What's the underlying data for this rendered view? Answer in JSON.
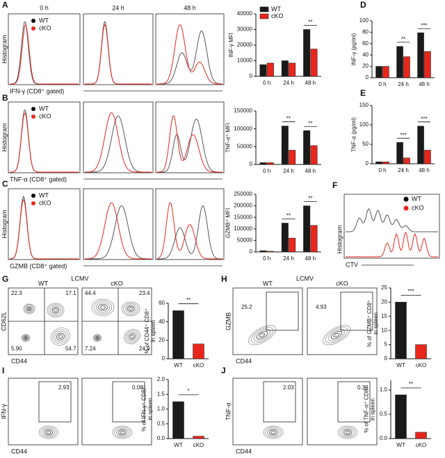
{
  "chart_data": [
    {
      "type": "bar",
      "ylabel": "INF-γ MFI",
      "categories": [
        "0 h",
        "24 h",
        "48 h"
      ],
      "series": [
        {
          "name": "WT",
          "color": "#1a1a1a",
          "values": [
            7500,
            10000,
            30000
          ]
        },
        {
          "name": "cKO",
          "color": "#e8261c",
          "values": [
            8500,
            8500,
            17500
          ]
        }
      ],
      "ylim": [
        0,
        40000
      ],
      "yticks": [
        0,
        10000,
        20000,
        30000,
        40000
      ],
      "significance": [
        null,
        null,
        "**"
      ]
    },
    {
      "type": "bar",
      "ylabel": "INF-γ (pg/ml)",
      "categories": [
        "0 h",
        "24 h",
        "48 h"
      ],
      "series": [
        {
          "color": "#1a1a1a",
          "values": [
            20,
            55,
            79
          ]
        },
        {
          "color": "#e8261c",
          "values": [
            20,
            37,
            46
          ]
        }
      ],
      "ylim": [
        0,
        100
      ],
      "yticks": [
        0,
        20,
        40,
        60,
        80,
        100
      ],
      "significance": [
        null,
        "**",
        "***"
      ]
    },
    {
      "type": "bar",
      "ylabel": "TNF-α⁺ MFI",
      "categories": [
        "0 h",
        "24 h",
        "48 h"
      ],
      "series": [
        {
          "color": "#1a1a1a",
          "values": [
            5000,
            108000,
            95000
          ]
        },
        {
          "color": "#e8261c",
          "values": [
            5000,
            40000,
            53000
          ]
        }
      ],
      "ylim": [
        0,
        150000
      ],
      "yticks": [
        0,
        50000,
        100000,
        150000
      ],
      "significance": [
        null,
        "**",
        "**"
      ]
    },
    {
      "type": "bar",
      "ylabel": "TNF-α (pg/ml)",
      "categories": [
        "0 h",
        "24 h",
        "48 h"
      ],
      "series": [
        {
          "color": "#1a1a1a",
          "values": [
            5,
            55,
            97
          ]
        },
        {
          "color": "#e8261c",
          "values": [
            5,
            15,
            35
          ]
        }
      ],
      "ylim": [
        0,
        150
      ],
      "yticks": [
        0,
        50,
        100,
        150
      ],
      "significance": [
        null,
        "***",
        "***"
      ]
    },
    {
      "type": "bar",
      "ylabel": "GZMB⁺ MFI",
      "categories": [
        "0 h",
        "24 h",
        "48 h"
      ],
      "series": [
        {
          "color": "#1a1a1a",
          "values": [
            5000,
            125000,
            200000
          ]
        },
        {
          "color": "#e8261c",
          "values": [
            3000,
            60000,
            115000
          ]
        }
      ],
      "ylim": [
        0,
        250000
      ],
      "yticks": [
        0,
        50000,
        100000,
        150000,
        200000,
        250000
      ],
      "significance": [
        null,
        "**",
        "**"
      ]
    },
    {
      "type": "bar",
      "ylabel": [
        "% of CD44⁺ CD8⁺",
        "in spleen"
      ],
      "categories": [
        "WT",
        "cKO"
      ],
      "values": [
        52,
        16
      ],
      "colors": [
        "#1a1a1a",
        "#e8261c"
      ],
      "ylim": [
        0,
        60
      ],
      "yticks": [
        0,
        20,
        40,
        60
      ],
      "significance": "**"
    },
    {
      "type": "bar",
      "ylabel": [
        "% of GZMB⁺ CD8⁺",
        "in spleen"
      ],
      "categories": [
        "WT",
        "cKO"
      ],
      "values": [
        20,
        5
      ],
      "colors": [
        "#1a1a1a",
        "#e8261c"
      ],
      "ylim": [
        0,
        25
      ],
      "yticks": [
        0,
        5,
        10,
        15,
        20,
        25
      ],
      "significance": "***"
    },
    {
      "type": "bar",
      "ylabel": [
        "% of IFN-γ⁺ CD8⁺",
        "in spleen"
      ],
      "categories": [
        "WT",
        "cKO"
      ],
      "values": [
        1.25,
        0.08
      ],
      "colors": [
        "#1a1a1a",
        "#e8261c"
      ],
      "ylim": [
        0,
        2
      ],
      "yticks": [
        {
          "value": 0,
          "label": "0.0"
        },
        {
          "value": 0.5,
          "label": "0.5"
        },
        {
          "value": 1,
          "label": "1.0"
        },
        {
          "value": 1.5,
          "label": "1.5"
        },
        {
          "value": 2,
          "label": "2.0"
        }
      ],
      "significance": "*"
    },
    {
      "type": "bar",
      "ylabel": [
        "% of TNF-α⁺ CD8⁺",
        "in spleen"
      ],
      "categories": [
        "WT",
        "cKO"
      ],
      "values": [
        0.9,
        0.13
      ],
      "colors": [
        "#1a1a1a",
        "#e8261c"
      ],
      "ylim": [
        0,
        1.2
      ],
      "yticks": [
        {
          "value": 0,
          "label": "0.0"
        },
        {
          "value": 0.5,
          "label": "0.5"
        },
        {
          "value": 1,
          "label": "1.0"
        }
      ],
      "significance": "**"
    }
  ],
  "letters": [
    "A",
    "B",
    "C",
    "D",
    "E",
    "F",
    "G",
    "H",
    "I",
    "J"
  ],
  "histograms": {
    "times": [
      "0 h",
      "24 h",
      "48 h"
    ],
    "ylabel": "Histogram",
    "colors": [
      "#555555",
      "#e8261c"
    ],
    "rows": [
      {
        "legend": [
          "WT",
          "cKO"
        ],
        "xlabel": "IFN-γ (CD8⁺ gated)"
      },
      {
        "legend": [
          "WT",
          "cKO"
        ],
        "xlabel": "TNF-α (CD8⁺ gated)"
      },
      {
        "legend": [
          "WT",
          "cKO"
        ],
        "xlabel": "GZMB (CD8⁺ gated)"
      }
    ]
  },
  "ctv": {
    "legend": [
      "WT",
      "cKO"
    ],
    "ylabel": "Histogram",
    "xlabel": "CTV"
  },
  "flow": [
    {
      "title": "LCMV",
      "groups": [
        "WT",
        "cKO"
      ],
      "ylabel": "CD62L",
      "xlabel": "CD44",
      "gates": [
        [
          "22.3",
          "17.1",
          "5.90",
          "54.7"
        ],
        [
          "44.4",
          "23.4",
          "7.24",
          "24.9"
        ]
      ]
    },
    {
      "title": "LCMV",
      "groups": [
        "WT",
        "cKO"
      ],
      "ylabel": "GZMB",
      "xlabel": "CD44",
      "gates": [
        [
          "25.2"
        ],
        [
          "4.93"
        ]
      ]
    },
    {
      "ylabel": "IFN-γ",
      "xlabel": "CD44",
      "gates": [
        [
          "2.93"
        ],
        [
          "0.081"
        ]
      ]
    },
    {
      "ylabel": "TNF-α",
      "xlabel": "CD44",
      "gates": [
        [
          "2.03"
        ],
        [
          "0.39"
        ]
      ]
    }
  ]
}
